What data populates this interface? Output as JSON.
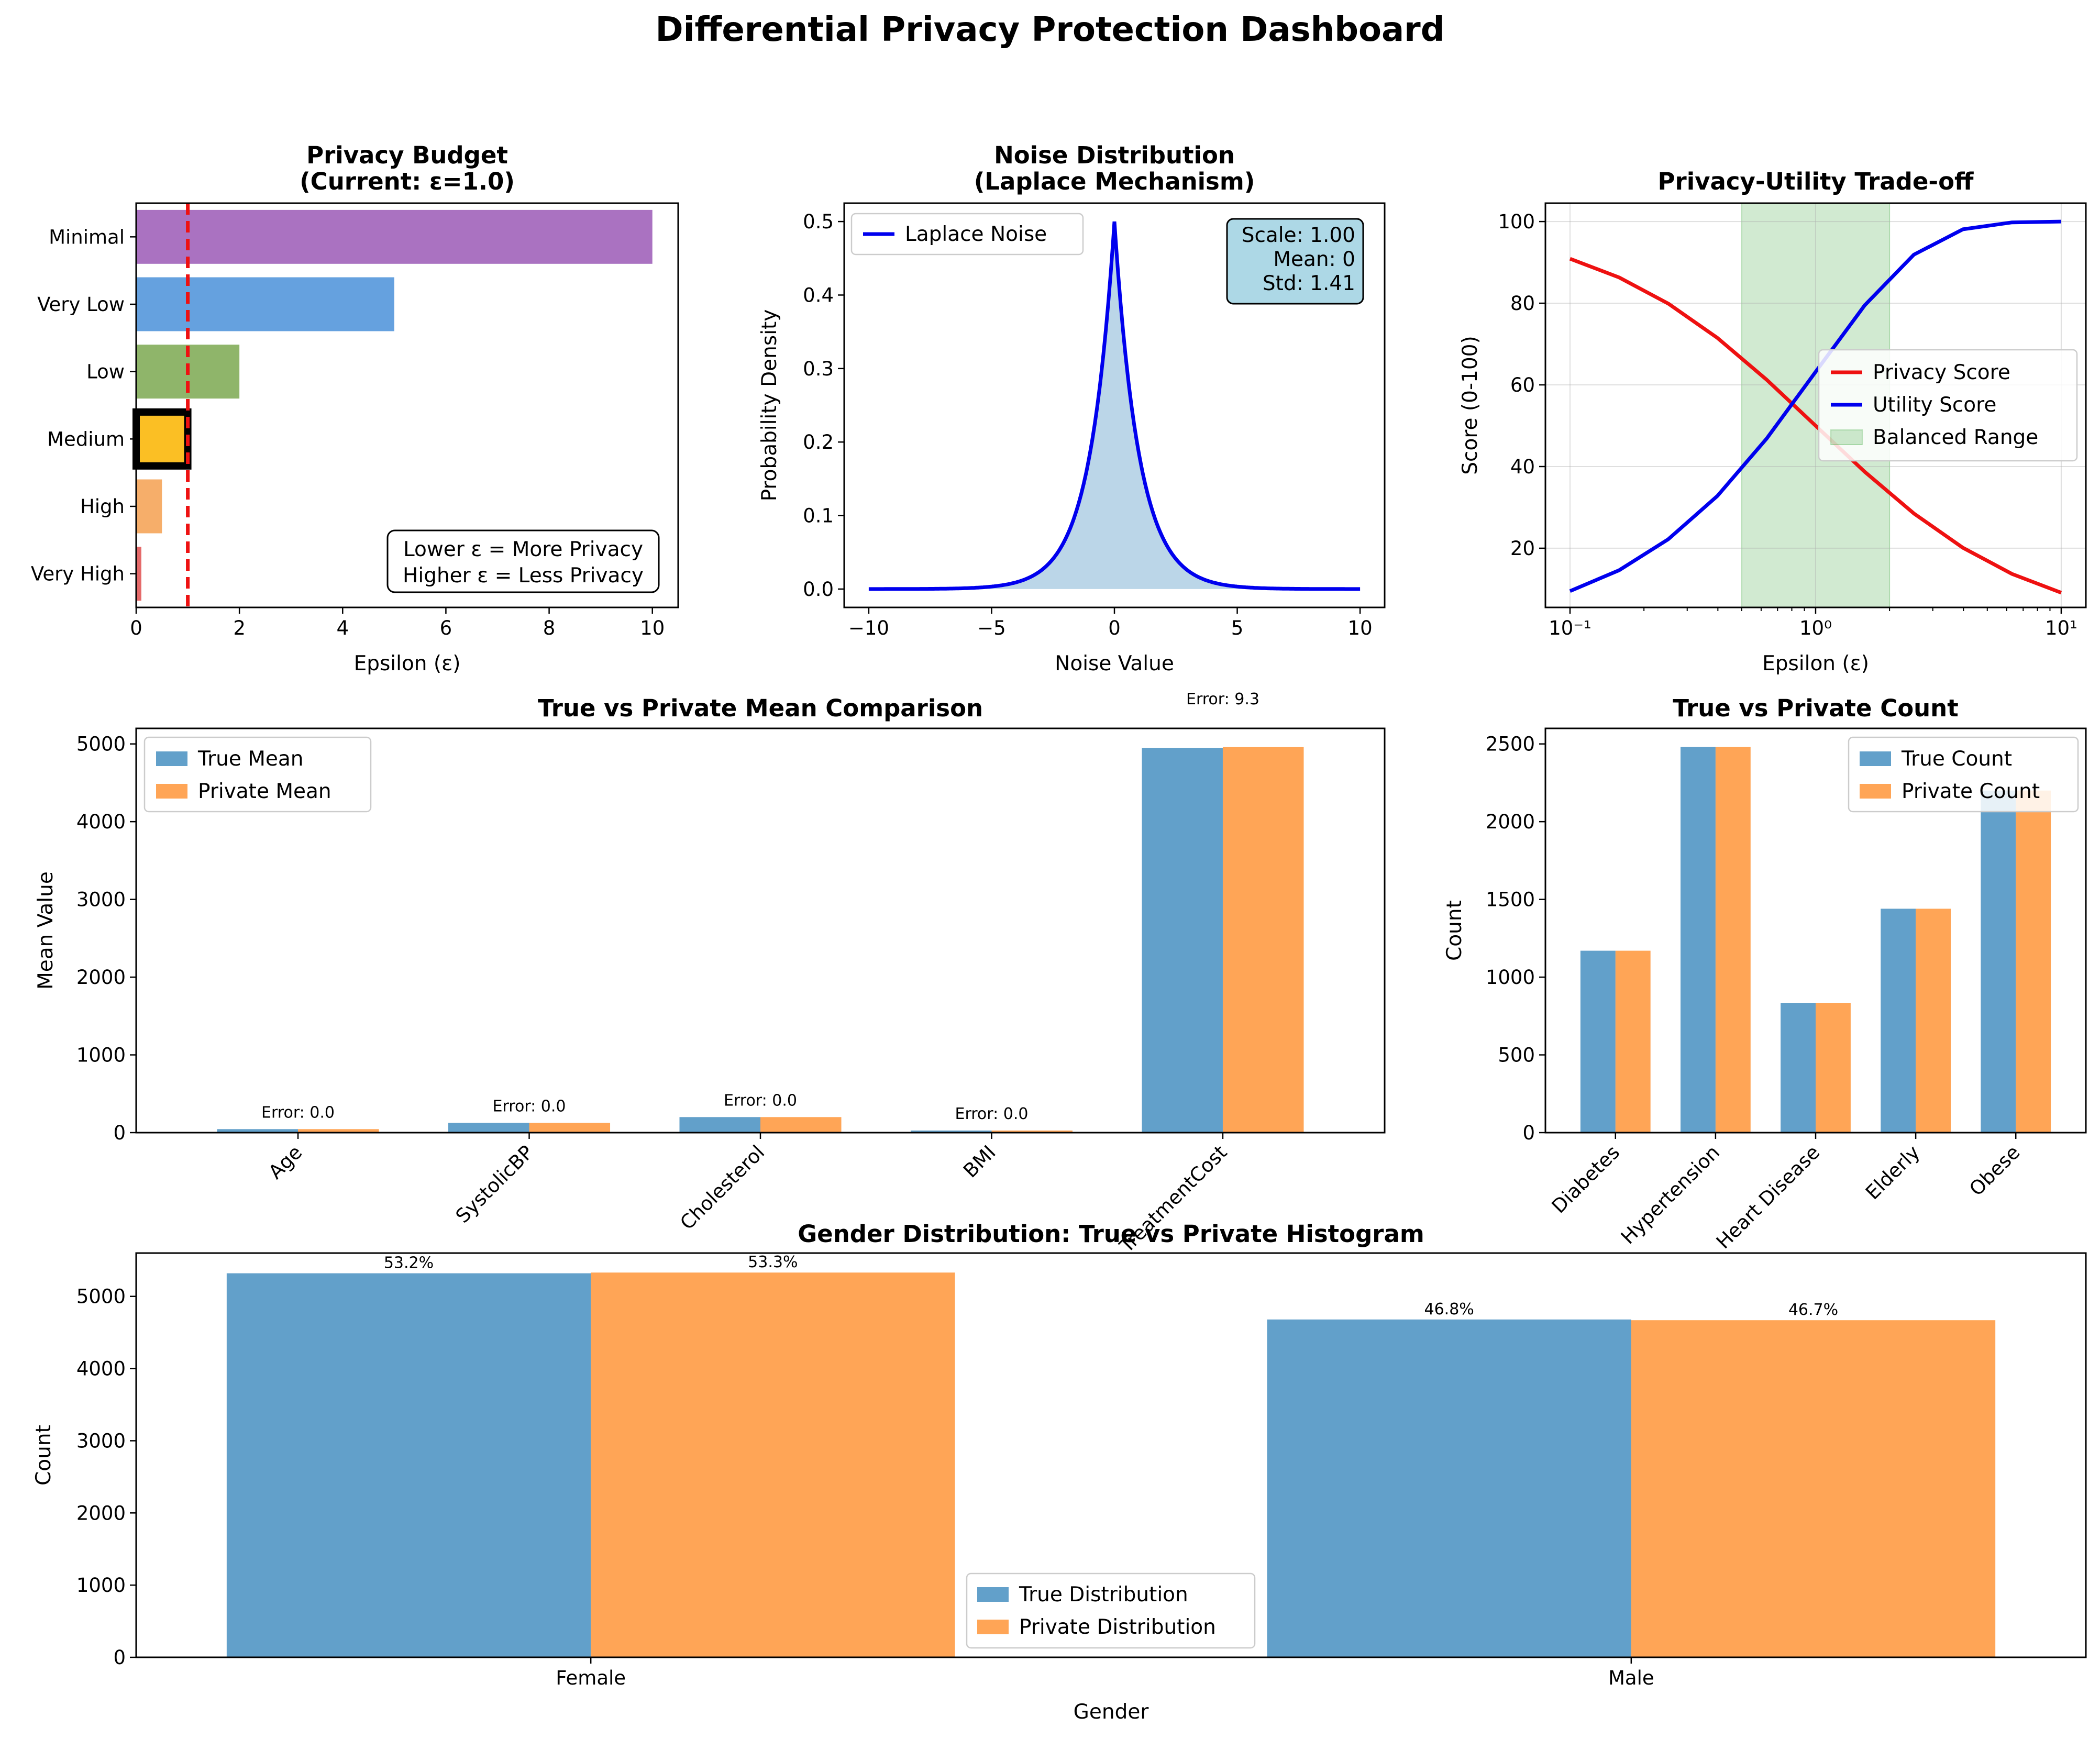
{
  "suptitle": "Differential Privacy Protection Dashboard",
  "colors": {
    "blue": "#1f77b4",
    "orange": "#ff7f0e",
    "purple": "#9b59b6",
    "lightblue": "#4a90d9",
    "green": "#7ba850",
    "gold": "#fbbf24",
    "lightorange": "#f5a050",
    "red": "#e05050"
  },
  "chart_data": [
    {
      "type": "bar",
      "orientation": "horizontal",
      "title": "Privacy Budget",
      "subtitle": "(Current: ε=1.0)",
      "xlabel": "Epsilon (ε)",
      "ylabel": "",
      "categories": [
        "Very High",
        "High",
        "Medium",
        "Low",
        "Very Low",
        "Minimal"
      ],
      "values": [
        0.1,
        0.5,
        1.0,
        2.0,
        5.0,
        10.0
      ],
      "highlighted": "Medium",
      "current_epsilon": 1.0,
      "xlim": [
        0,
        10.5
      ],
      "xticks": [
        0,
        2,
        4,
        6,
        8,
        10
      ],
      "note_lines": [
        "Lower ε = More Privacy",
        "Higher ε = Less Privacy"
      ],
      "note_position": "bottom-right"
    },
    {
      "type": "area",
      "title": "Noise Distribution",
      "subtitle": "(Laplace Mechanism)",
      "xlabel": "Noise Value",
      "ylabel": "Probability Density",
      "distribution": "laplace",
      "scale": 1.0,
      "mean": 0,
      "xlim": [
        -11,
        11
      ],
      "ylim": [
        -0.025,
        0.525
      ],
      "xticks": [
        -10,
        -5,
        0,
        5,
        10
      ],
      "yticks": [
        0.0,
        0.1,
        0.2,
        0.3,
        0.4,
        0.5
      ],
      "series": [
        {
          "name": "Laplace Noise"
        }
      ],
      "stats_lines": [
        "Scale: 1.00",
        "Mean: 0",
        "Std: 1.41"
      ],
      "legend": "top-left"
    },
    {
      "type": "line",
      "title": "Privacy-Utility Trade-off",
      "xlabel": "Epsilon (ε)",
      "ylabel": "Score (0-100)",
      "xscale": "log",
      "xlim": [
        0.0794,
        12.6
      ],
      "ylim": [
        5.5,
        104.5
      ],
      "xticks": [
        "10⁻¹",
        "10⁰",
        "10¹"
      ],
      "yticks": [
        20,
        40,
        60,
        80,
        100
      ],
      "x": [
        0.1,
        0.1585,
        0.2512,
        0.3981,
        0.631,
        1.0,
        1.585,
        2.512,
        3.981,
        6.31,
        10.0
      ],
      "series": [
        {
          "name": "Privacy Score",
          "values": [
            90.9,
            86.3,
            79.9,
            71.5,
            61.3,
            50.0,
            38.7,
            28.5,
            20.1,
            13.7,
            9.1
          ]
        },
        {
          "name": "Utility Score",
          "values": [
            9.5,
            14.6,
            22.2,
            32.8,
            46.8,
            63.2,
            79.5,
            91.9,
            98.1,
            99.8,
            100.0
          ]
        }
      ],
      "shaded_region": {
        "name": "Balanced Range",
        "x": [
          0.5,
          2.0
        ]
      },
      "grid": true,
      "legend": "center-right"
    },
    {
      "type": "bar",
      "title": "True vs Private Mean Comparison",
      "xlabel": "",
      "ylabel": "Mean Value",
      "categories": [
        "Age",
        "SystolicBP",
        "Cholesterol",
        "BMI",
        "TreatmentCost"
      ],
      "series": [
        {
          "name": "True Mean",
          "values": [
            45,
            125,
            200,
            27,
            4950
          ]
        },
        {
          "name": "Private Mean",
          "values": [
            45,
            125,
            200,
            27,
            4959
          ]
        }
      ],
      "bar_labels": [
        "Error: 0.0",
        "Error: 0.0",
        "Error: 0.0",
        "Error: 0.0",
        "Error: 9.3"
      ],
      "ylim": [
        0,
        5200
      ],
      "yticks": [
        0,
        1000,
        2000,
        3000,
        4000,
        5000
      ],
      "legend": "top-left"
    },
    {
      "type": "bar",
      "title": "True vs Private Count",
      "xlabel": "",
      "ylabel": "Count",
      "categories": [
        "Diabetes",
        "Hypertension",
        "Heart Disease",
        "Elderly",
        "Obese"
      ],
      "series": [
        {
          "name": "True Count",
          "values": [
            1170,
            2480,
            835,
            1440,
            2200
          ]
        },
        {
          "name": "Private Count",
          "values": [
            1170,
            2480,
            835,
            1440,
            2200
          ]
        }
      ],
      "ylim": [
        0,
        2600
      ],
      "yticks": [
        0,
        500,
        1000,
        1500,
        2000,
        2500
      ],
      "legend": "top-right"
    },
    {
      "type": "bar",
      "title": "Gender Distribution: True vs Private Histogram",
      "xlabel": "Gender",
      "ylabel": "Count",
      "categories": [
        "Female",
        "Male"
      ],
      "series": [
        {
          "name": "True Distribution",
          "values": [
            5320,
            4680
          ]
        },
        {
          "name": "Private Distribution",
          "values": [
            5330,
            4670
          ]
        }
      ],
      "bar_labels": [
        [
          "53.2%",
          "46.8%"
        ],
        [
          "53.3%",
          "46.7%"
        ]
      ],
      "ylim": [
        0,
        5600
      ],
      "yticks": [
        0,
        1000,
        2000,
        3000,
        4000,
        5000
      ],
      "legend": "lower-center"
    }
  ]
}
